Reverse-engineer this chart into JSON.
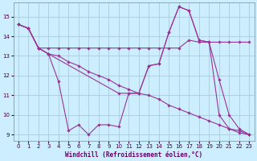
{
  "title": "",
  "xlabel": "Windchill (Refroidissement éolien,°C)",
  "ylabel": "",
  "background_color": "#cceeff",
  "grid_color": "#aaccdd",
  "line_color": "#993399",
  "xlim": [
    -0.5,
    23.5
  ],
  "ylim": [
    8.7,
    15.7
  ],
  "yticks": [
    9,
    10,
    11,
    12,
    13,
    14,
    15
  ],
  "xticks": [
    0,
    1,
    2,
    3,
    4,
    5,
    6,
    7,
    8,
    9,
    10,
    11,
    12,
    13,
    14,
    15,
    16,
    17,
    18,
    19,
    20,
    21,
    22,
    23
  ],
  "lines": [
    {
      "x": [
        0,
        1,
        2,
        3,
        4,
        5,
        6,
        7,
        8,
        9,
        10,
        11,
        12,
        13,
        14,
        15,
        16,
        17,
        18,
        19,
        20,
        21,
        22,
        23
      ],
      "y": [
        14.6,
        14.4,
        13.4,
        13.1,
        11.7,
        9.2,
        9.5,
        9.0,
        9.5,
        9.5,
        9.4,
        11.1,
        11.1,
        12.5,
        12.6,
        14.2,
        15.5,
        15.3,
        13.8,
        13.7,
        10.0,
        9.3,
        9.1,
        9.0
      ]
    },
    {
      "x": [
        0,
        1,
        2,
        3,
        4,
        5,
        6,
        7,
        8,
        9,
        10,
        11,
        12,
        13,
        14,
        15,
        16,
        17,
        18,
        19,
        20,
        21,
        22,
        23
      ],
      "y": [
        14.6,
        14.4,
        13.4,
        13.4,
        13.4,
        13.4,
        13.4,
        13.4,
        13.4,
        13.4,
        13.4,
        13.4,
        13.4,
        13.4,
        13.4,
        13.4,
        13.4,
        13.8,
        13.7,
        13.7,
        13.7,
        13.7,
        13.7,
        13.7
      ]
    },
    {
      "x": [
        0,
        1,
        2,
        3,
        4,
        5,
        6,
        7,
        8,
        9,
        10,
        11,
        12,
        13,
        14,
        15,
        16,
        17,
        18,
        19,
        20,
        21,
        22,
        23
      ],
      "y": [
        14.6,
        14.4,
        13.4,
        13.1,
        13.0,
        12.7,
        12.5,
        12.2,
        12.0,
        11.8,
        11.5,
        11.3,
        11.1,
        11.0,
        10.8,
        10.5,
        10.3,
        10.1,
        9.9,
        9.7,
        9.5,
        9.3,
        9.2,
        9.0
      ]
    },
    {
      "x": [
        0,
        1,
        2,
        3,
        10,
        11,
        12,
        13,
        14,
        15,
        16,
        17,
        18,
        19,
        20,
        21,
        22,
        23
      ],
      "y": [
        14.6,
        14.4,
        13.4,
        13.1,
        11.1,
        11.1,
        11.1,
        12.5,
        12.6,
        14.2,
        15.5,
        15.3,
        13.8,
        13.7,
        11.8,
        10.0,
        9.3,
        9.0
      ]
    }
  ]
}
